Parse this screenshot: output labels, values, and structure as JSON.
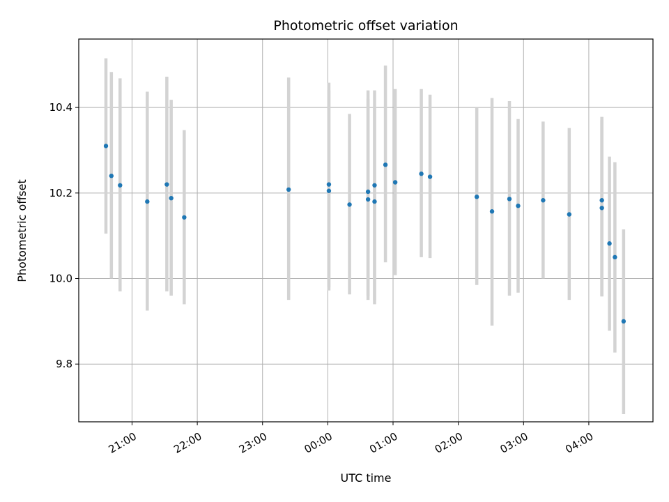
{
  "chart_data": {
    "type": "scatter",
    "title": "Photometric offset variation",
    "xlabel": "UTC time",
    "ylabel": "Photometric offset",
    "x_ticks": [
      "21:00",
      "22:00",
      "23:00",
      "00:00",
      "01:00",
      "02:00",
      "03:00",
      "04:00"
    ],
    "y_ticks": [
      "9.8",
      "10.0",
      "10.2",
      "10.4"
    ],
    "y_tick_values": [
      9.8,
      10.0,
      10.2,
      10.4
    ],
    "xlim": [
      "20:11",
      "04:59"
    ],
    "ylim": [
      9.665,
      10.56
    ],
    "grid": true,
    "colors": {
      "points": "#1f77b4",
      "error_bars": "#d3d3d3"
    },
    "points": [
      {
        "t": "20:36",
        "y": 10.31,
        "lo": 10.105,
        "hi": 10.515
      },
      {
        "t": "20:41",
        "y": 10.24,
        "lo": 10.0,
        "hi": 10.483
      },
      {
        "t": "20:49",
        "y": 10.218,
        "lo": 9.97,
        "hi": 10.468
      },
      {
        "t": "21:14",
        "y": 10.18,
        "lo": 9.925,
        "hi": 10.437
      },
      {
        "t": "21:32",
        "y": 10.22,
        "lo": 9.97,
        "hi": 10.472
      },
      {
        "t": "21:36",
        "y": 10.188,
        "lo": 9.96,
        "hi": 10.418
      },
      {
        "t": "21:48",
        "y": 10.143,
        "lo": 9.94,
        "hi": 10.347
      },
      {
        "t": "23:24",
        "y": 10.208,
        "lo": 9.95,
        "hi": 10.47
      },
      {
        "t": "00:01",
        "y": 10.22,
        "lo": 9.972,
        "hi": 10.458
      },
      {
        "t": "00:01",
        "y": 10.205,
        "lo": 9.98,
        "hi": 10.44
      },
      {
        "t": "00:20",
        "y": 10.173,
        "lo": 9.963,
        "hi": 10.385
      },
      {
        "t": "00:37",
        "y": 10.203,
        "lo": 9.95,
        "hi": 10.44
      },
      {
        "t": "00:37",
        "y": 10.185,
        "lo": 9.96,
        "hi": 10.42
      },
      {
        "t": "00:43",
        "y": 10.218,
        "lo": 9.94,
        "hi": 10.44
      },
      {
        "t": "00:43",
        "y": 10.18,
        "lo": 9.95,
        "hi": 10.4
      },
      {
        "t": "00:53",
        "y": 10.266,
        "lo": 10.038,
        "hi": 10.498
      },
      {
        "t": "01:02",
        "y": 10.225,
        "lo": 10.008,
        "hi": 10.443
      },
      {
        "t": "01:26",
        "y": 10.245,
        "lo": 10.05,
        "hi": 10.443
      },
      {
        "t": "01:34",
        "y": 10.238,
        "lo": 10.048,
        "hi": 10.43
      },
      {
        "t": "02:17",
        "y": 10.191,
        "lo": 9.985,
        "hi": 10.4
      },
      {
        "t": "02:31",
        "y": 10.157,
        "lo": 9.89,
        "hi": 10.422
      },
      {
        "t": "02:47",
        "y": 10.186,
        "lo": 9.96,
        "hi": 10.415
      },
      {
        "t": "02:55",
        "y": 10.17,
        "lo": 9.967,
        "hi": 10.373
      },
      {
        "t": "03:18",
        "y": 10.183,
        "lo": 10.0,
        "hi": 10.367
      },
      {
        "t": "03:42",
        "y": 10.15,
        "lo": 9.95,
        "hi": 10.352
      },
      {
        "t": "04:12",
        "y": 10.183,
        "lo": 9.958,
        "hi": 10.378
      },
      {
        "t": "04:12",
        "y": 10.165,
        "lo": 9.96,
        "hi": 10.37
      },
      {
        "t": "04:19",
        "y": 10.082,
        "lo": 9.878,
        "hi": 10.285
      },
      {
        "t": "04:24",
        "y": 10.05,
        "lo": 9.827,
        "hi": 10.272
      },
      {
        "t": "04:32",
        "y": 9.9,
        "lo": 9.683,
        "hi": 10.115
      }
    ]
  }
}
